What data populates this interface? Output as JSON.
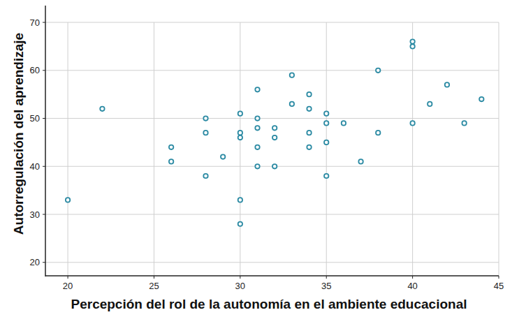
{
  "chart_data": {
    "type": "scatter",
    "x_label": "Percepción del rol de la autonomía en el ambiente educacional",
    "y_label": "Autorregulación del aprendizaje",
    "x": [
      20,
      22,
      26,
      26,
      28,
      28,
      28,
      29,
      30,
      30,
      30,
      30,
      30,
      31,
      31,
      31,
      31,
      31,
      32,
      32,
      32,
      33,
      33,
      34,
      34,
      34,
      34,
      35,
      35,
      35,
      35,
      36,
      37,
      38,
      38,
      40,
      40,
      40,
      41,
      42,
      43,
      44
    ],
    "values": [
      33,
      52,
      44,
      41,
      50,
      47,
      38,
      42,
      51,
      47,
      46,
      33,
      28,
      56,
      50,
      48,
      44,
      40,
      48,
      46,
      40,
      59,
      53,
      55,
      52,
      47,
      44,
      51,
      49,
      45,
      38,
      49,
      41,
      47,
      60,
      66,
      65,
      49,
      53,
      57,
      49,
      54
    ],
    "color": "#2b8aa3",
    "marker": "circle-open",
    "xlim": [
      18.7,
      45
    ],
    "xticks": [
      20,
      25,
      30,
      35,
      40,
      45
    ],
    "ylim": [
      17.2,
      73.5
    ],
    "yticks": [
      20,
      30,
      40,
      50,
      60,
      70
    ],
    "grid": true
  }
}
